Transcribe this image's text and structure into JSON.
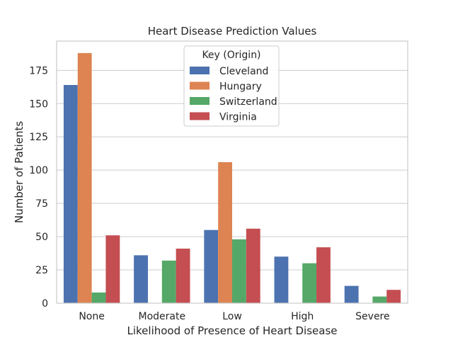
{
  "chart_data": {
    "type": "bar",
    "title": "Heart Disease Prediction Values",
    "xlabel": "Likelihood of Presence of Heart Disease",
    "ylabel": "Number of Patients",
    "categories": [
      "None",
      "Moderate",
      "Low",
      "High",
      "Severe"
    ],
    "ylim": [
      0,
      197
    ],
    "yticks": [
      0,
      25,
      50,
      75,
      100,
      125,
      150,
      175
    ],
    "grid": "horizontal",
    "legend": {
      "title": "Key (Origin)",
      "placement": "top-center"
    },
    "series": [
      {
        "name": "Cleveland",
        "color": "#4c72b0",
        "values": [
          164,
          36,
          55,
          35,
          13
        ]
      },
      {
        "name": "Hungary",
        "color": "#dd8452",
        "values": [
          188,
          0,
          106,
          0,
          0
        ]
      },
      {
        "name": "Switzerland",
        "color": "#55a868",
        "values": [
          8,
          32,
          48,
          30,
          5
        ]
      },
      {
        "name": "Virginia",
        "color": "#c44e52",
        "values": [
          51,
          41,
          56,
          42,
          10
        ]
      }
    ]
  }
}
